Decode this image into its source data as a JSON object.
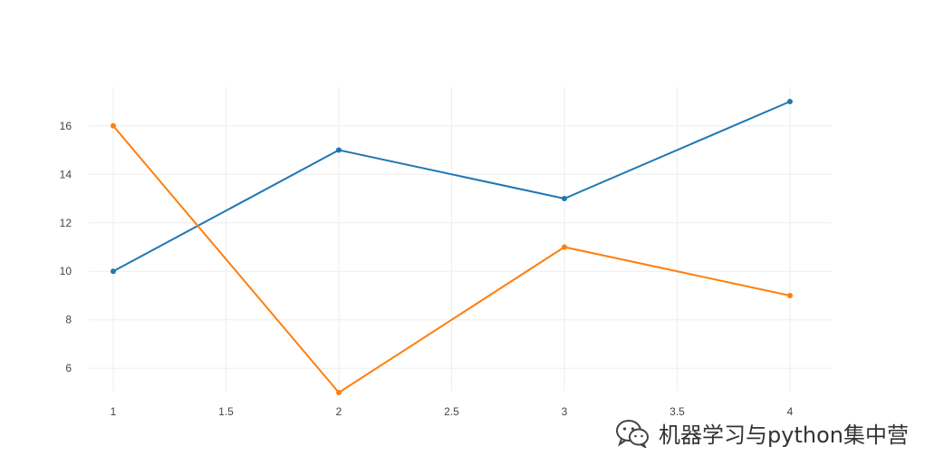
{
  "chart_data": {
    "type": "line",
    "x": [
      1,
      2,
      3,
      4
    ],
    "series": [
      {
        "color": "#1f77b4",
        "values": [
          10,
          15,
          13,
          17
        ]
      },
      {
        "color": "#ff7f0e",
        "values": [
          16,
          5,
          11,
          9
        ]
      }
    ],
    "xlim": [
      1,
      4
    ],
    "ylim": [
      4.4,
      17.6
    ],
    "x_ticks": [
      "1",
      "1.5",
      "2",
      "2.5",
      "3",
      "3.5",
      "4"
    ],
    "y_ticks": [
      "6",
      "8",
      "10",
      "12",
      "14",
      "16"
    ],
    "grid": true,
    "markers": true,
    "legend": "none"
  },
  "watermark": {
    "icon": "wechat-icon",
    "text": "机器学习与python集中营"
  }
}
